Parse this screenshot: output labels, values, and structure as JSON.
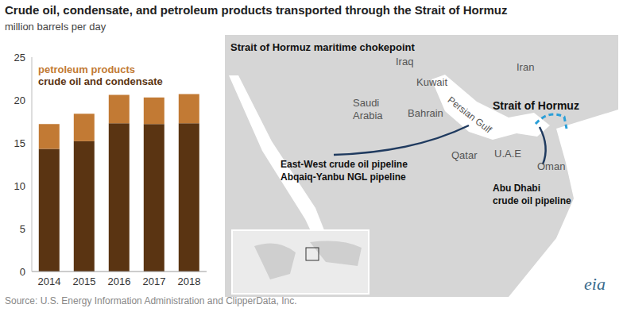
{
  "chart_data": {
    "type": "bar",
    "title": "Crude oil, condensate, and petroleum products transported through the Strait of Hormuz",
    "subtitle": "million barrels per day",
    "categories": [
      "2014",
      "2015",
      "2016",
      "2017",
      "2018"
    ],
    "series": [
      {
        "name": "crude oil and condensate",
        "color": "#5a3412",
        "values": [
          14.3,
          15.2,
          17.3,
          17.2,
          17.3
        ]
      },
      {
        "name": "petroleum products",
        "color": "#c27a34",
        "values": [
          2.9,
          3.2,
          3.3,
          3.1,
          3.4
        ]
      }
    ],
    "stacked": true,
    "ylim": [
      0,
      25
    ],
    "yticks": [
      0,
      5,
      10,
      15,
      20,
      25
    ],
    "grid": false,
    "legend": "top-left"
  },
  "map": {
    "title": "Strait of Hormuz maritime chokepoint",
    "labels": {
      "iraq": "Iraq",
      "kuwait": "Kuwait",
      "iran": "Iran",
      "saudi": "Saudi\nArabia",
      "bahrain": "Bahrain",
      "gulf": "Persian Gulf",
      "strait": "Strait of Hormuz",
      "qatar": "Qatar",
      "uae": "U.A.E",
      "oman": "Oman",
      "eastwest": "East-West crude oil pipeline\nAbqaiq-Yanbu NGL pipeline",
      "abudhabi": "Abu Dhabi\ncrude oil pipeline"
    }
  },
  "source": "Source: U.S. Energy Information Administration and ClipperData, Inc.",
  "logo": "eia"
}
